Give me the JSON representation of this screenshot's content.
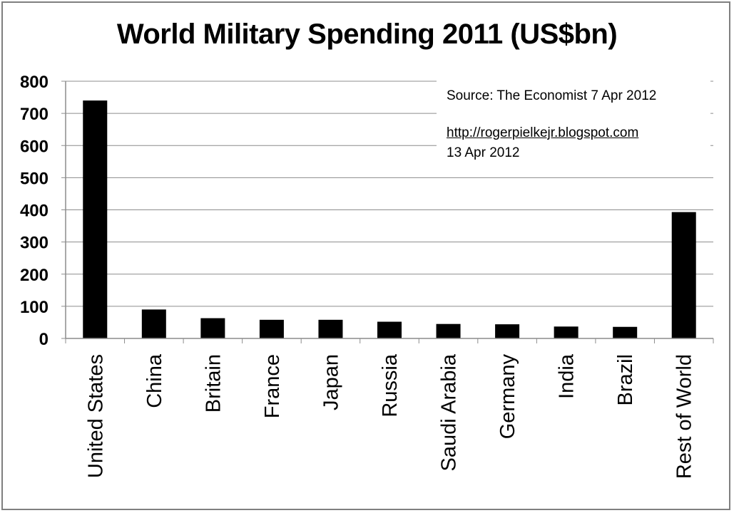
{
  "chart_data": {
    "type": "bar",
    "title": "World Military Spending 2011 (US$bn)",
    "xlabel": "",
    "ylabel": "",
    "categories": [
      "United States",
      "China",
      "Britain",
      "France",
      "Japan",
      "Russia",
      "Saudi Arabia",
      "Germany",
      "India",
      "Brazil",
      "Rest of World"
    ],
    "values": [
      740,
      90,
      63,
      58,
      58,
      52,
      45,
      44,
      37,
      36,
      393
    ],
    "ylim": [
      0,
      800
    ],
    "yticks": [
      "0",
      "100",
      "200",
      "300",
      "400",
      "500",
      "600",
      "700",
      "800"
    ],
    "grid": true,
    "bar_color": "#000000",
    "grid_color": "#8c8c8c"
  },
  "annotation": {
    "source": "Source: The Economist 7 Apr 2012",
    "link": "http://rogerpielkejr.blogspot.com",
    "date": "13 Apr 2012"
  }
}
